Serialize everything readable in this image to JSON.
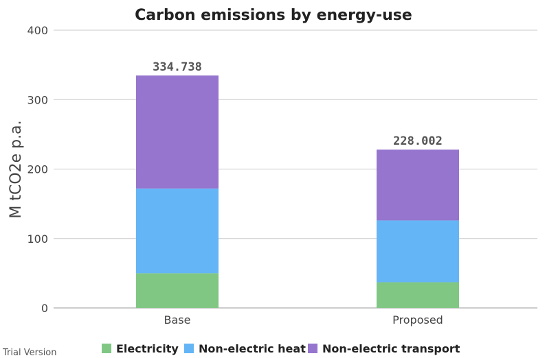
{
  "watermark": "Trial Version",
  "colors": {
    "electricity": "#80c783",
    "heat": "#64b5f6",
    "transport": "#9575cd",
    "grid": "#c8c8c8",
    "axis": "#999999"
  },
  "chart_data": {
    "type": "bar",
    "stacked": true,
    "title": "Carbon emissions by energy-use",
    "xlabel": "",
    "ylabel": "M tCO2e p.a.",
    "ylim": [
      0,
      400
    ],
    "yticks": [
      "0",
      "100",
      "200",
      "300",
      "400"
    ],
    "grid": true,
    "legend_position": "bottom",
    "categories": [
      "Base",
      "Proposed"
    ],
    "series": [
      {
        "name": "Electricity",
        "values": [
          50,
          37
        ]
      },
      {
        "name": "Non-electric heat",
        "values": [
          122,
          89
        ]
      },
      {
        "name": "Non-electric transport",
        "values": [
          162.738,
          102.002
        ]
      }
    ],
    "totals": [
      "334.738",
      "228.002"
    ]
  }
}
